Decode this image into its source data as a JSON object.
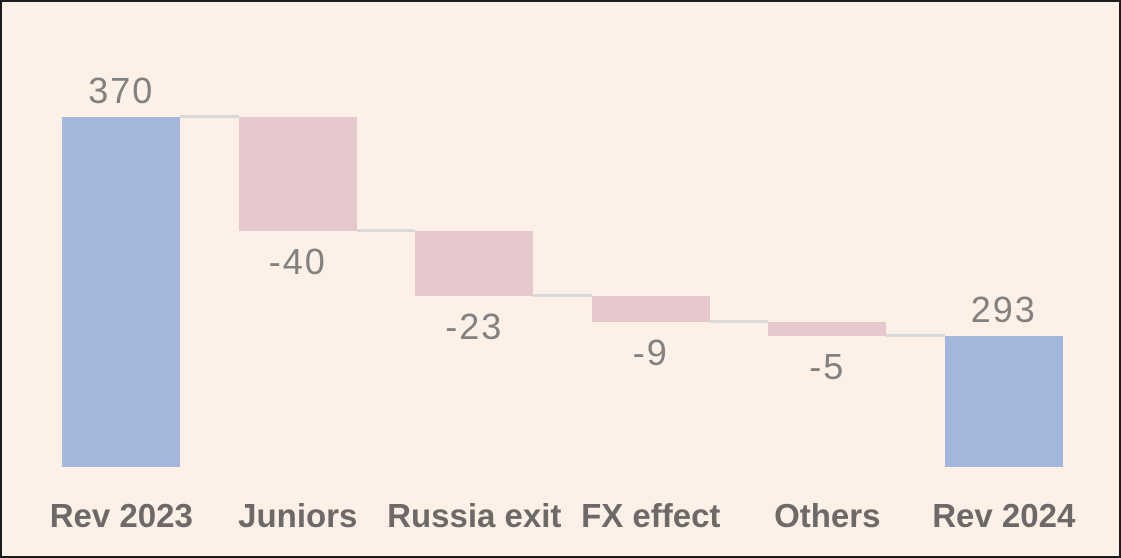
{
  "chart_data": {
    "type": "waterfall",
    "title": "",
    "categories": [
      "Rev 2023",
      "Juniors",
      "Russia exit",
      "FX effect",
      "Others",
      "Rev 2024"
    ],
    "values": [
      370,
      -40,
      -23,
      -9,
      -5,
      293
    ],
    "roles": [
      "total",
      "delta",
      "delta",
      "delta",
      "delta",
      "total"
    ],
    "data_labels": [
      "370",
      "-40",
      "-23",
      "-9",
      "-5",
      "293"
    ],
    "cumulative_levels": [
      370,
      330,
      307,
      298,
      293
    ],
    "ylim": [
      247,
      370
    ],
    "grid": false,
    "legend": false,
    "axes_visible": false,
    "colors": {
      "total_bar": "#a3b7dd",
      "negative_bar": "#e4c8cd",
      "connector": "#d9d9d9",
      "value_label": "#818181",
      "category_label": "#6e6969",
      "background": "#fdf0e6",
      "border": "#1c1c1c"
    }
  }
}
